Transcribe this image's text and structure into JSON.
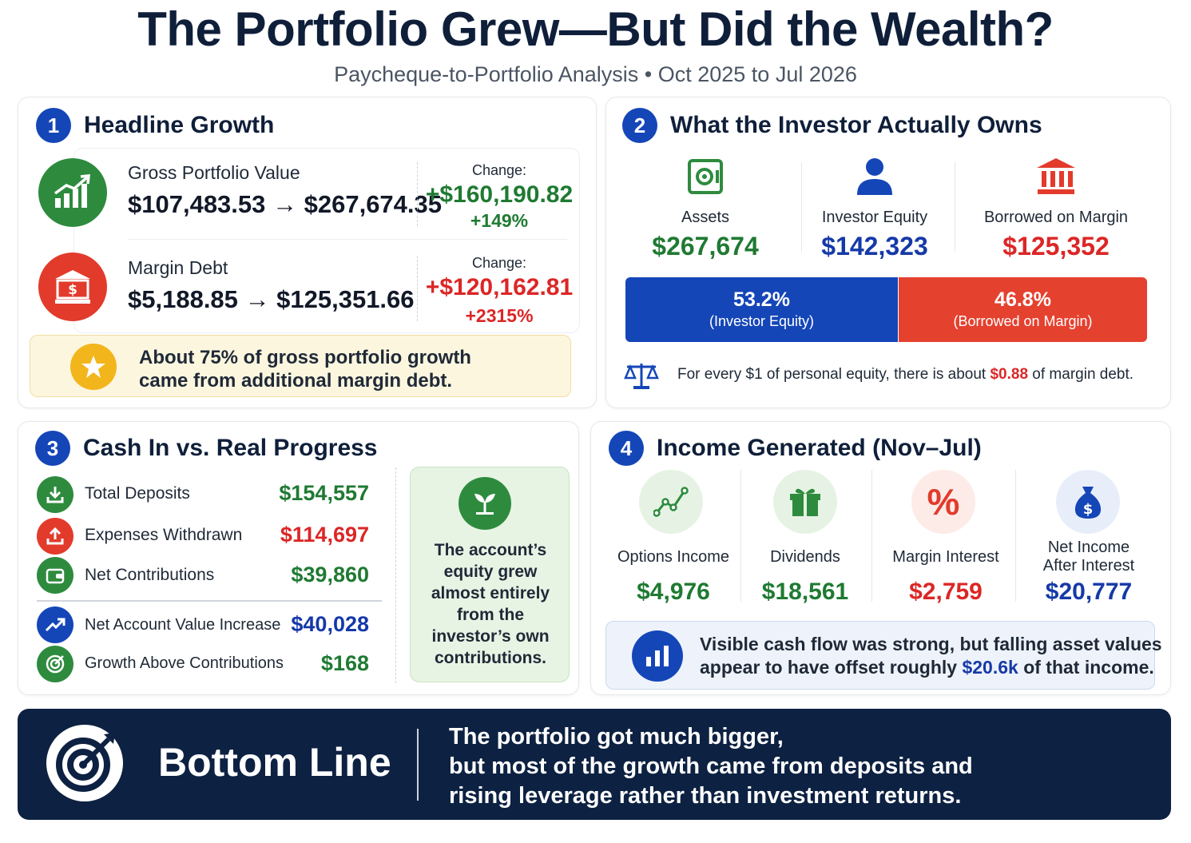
{
  "title": "The Portfolio Grew—But Did the Wealth?",
  "subtitle": "Paycheque-to-Portfolio Analysis • Oct 2025 to Jul 2026",
  "colors": {
    "navy": "#0f1f3a",
    "blue": "#1546b8",
    "green": "#1f7a32",
    "red": "#dc2626",
    "bottom_bg": "#0d2142"
  },
  "s1": {
    "num": "1",
    "title": "Headline Growth",
    "gross": {
      "label": "Gross Portfolio Value",
      "value": "$107,483.53 → $267,674.35",
      "change_label": "Change:",
      "change": "+$160,190.82",
      "pct": "+149%",
      "icon": "growth-chart-icon"
    },
    "margin": {
      "label": "Margin Debt",
      "value": "$5,188.85 → $125,351.66",
      "change_label": "Change:",
      "change": "+$120,162.81",
      "pct": "+2315%",
      "icon": "bank-dollar-icon"
    },
    "callout_line1": "About 75% of gross portfolio growth",
    "callout_line2": "came from additional margin debt.",
    "callout_icon": "star-icon"
  },
  "s2": {
    "num": "2",
    "title": "What the Investor Actually Owns",
    "assets": {
      "label": "Assets",
      "value": "$267,674",
      "icon": "safe-icon"
    },
    "equity": {
      "label": "Investor Equity",
      "value": "$142,323",
      "icon": "person-icon"
    },
    "borrowed": {
      "label": "Borrowed on Margin",
      "value": "$125,352",
      "icon": "bank-icon"
    },
    "bar_equity": {
      "pct": "53.2%",
      "label": "(Investor Equity)",
      "share": 0.532
    },
    "bar_margin": {
      "pct": "46.8%",
      "label": "(Borrowed on Margin)",
      "share": 0.468
    },
    "ratio_pre": "For every $1 of personal equity, there is about ",
    "ratio_val": "$0.88",
    "ratio_post": " of margin debt.",
    "ratio_icon": "balance-scale-icon"
  },
  "s3": {
    "num": "3",
    "title": "Cash In vs. Real Progress",
    "rows": [
      {
        "label": "Total Deposits",
        "value": "$154,557",
        "icon": "download-icon"
      },
      {
        "label": "Expenses Withdrawn",
        "value": "$114,697",
        "icon": "upload-icon"
      },
      {
        "label": "Net Contributions",
        "value": "$39,860",
        "icon": "wallet-icon"
      },
      {
        "label": "Net Account Value Increase",
        "value": "$40,028",
        "icon": "trend-up-icon"
      },
      {
        "label": "Growth Above Contributions",
        "value": "$168",
        "icon": "target-check-icon"
      }
    ],
    "panel_lines": [
      "The account’s",
      "equity grew",
      "almost entirely",
      "from the",
      "investor’s own",
      "contributions."
    ],
    "panel_icon": "sprout-icon"
  },
  "s4": {
    "num": "4",
    "title": "Income Generated (Nov–Jul)",
    "items": [
      {
        "label1": "Options Income",
        "label2": "",
        "value": "$4,976",
        "icon": "line-chart-icon"
      },
      {
        "label1": "Dividends",
        "label2": "",
        "value": "$18,561",
        "icon": "gift-icon"
      },
      {
        "label1": "Margin Interest",
        "label2": "",
        "value": "$2,759",
        "icon": "percent-icon"
      },
      {
        "label1": "Net Income",
        "label2": "After Interest",
        "value": "$20,777",
        "icon": "money-bag-icon"
      }
    ],
    "callout_line1": "Visible cash flow was strong, but falling asset values",
    "callout_pre": "appear to have offset roughly ",
    "callout_val": "$20.6k",
    "callout_post": " of that income.",
    "callout_icon": "bar-chart-icon"
  },
  "bottom": {
    "title": "Bottom Line",
    "lines": [
      "The portfolio got much bigger,",
      "but most of the growth came from deposits and",
      "rising leverage rather than investment returns."
    ],
    "icon": "target-arrow-icon"
  }
}
